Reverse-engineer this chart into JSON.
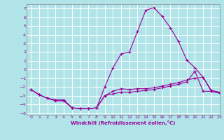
{
  "xlabel": "Windchill (Refroidissement éolien,°C)",
  "x_hours": [
    0,
    1,
    2,
    3,
    4,
    5,
    6,
    7,
    8,
    9,
    10,
    11,
    12,
    13,
    14,
    15,
    16,
    17,
    18,
    19,
    20,
    21,
    22,
    23
  ],
  "line1": [
    -2.3,
    -2.9,
    -3.3,
    -3.6,
    -3.6,
    -4.4,
    -4.5,
    -4.5,
    -4.4,
    -2.0,
    0.2,
    1.8,
    2.0,
    4.4,
    6.8,
    7.1,
    6.1,
    4.8,
    3.2,
    1.1,
    0.2,
    -0.9,
    -2.4,
    -2.6
  ],
  "line2": [
    -2.3,
    -2.9,
    -3.3,
    -3.5,
    -3.5,
    -4.4,
    -4.5,
    -4.5,
    -4.4,
    -3.0,
    -2.5,
    -2.2,
    -2.3,
    -2.2,
    -2.2,
    -2.1,
    -1.9,
    -1.7,
    -1.5,
    -1.2,
    -1.0,
    -0.9,
    -2.5,
    -2.7
  ],
  "line3": [
    -2.3,
    -2.9,
    -3.3,
    -3.5,
    -3.5,
    -4.4,
    -4.5,
    -4.5,
    -4.4,
    -3.0,
    -2.8,
    -2.6,
    -2.6,
    -2.5,
    -2.4,
    -2.3,
    -2.1,
    -1.9,
    -1.7,
    -1.4,
    -0.2,
    -2.5,
    -2.5,
    -2.7
  ],
  "line_color": "#990099",
  "bg_color": "#b0e4e8",
  "grid_color": "#c8e8e8",
  "xlim": [
    -0.5,
    23
  ],
  "ylim": [
    -5.2,
    7.5
  ],
  "yticks": [
    -5,
    -4,
    -3,
    -2,
    -1,
    0,
    1,
    2,
    3,
    4,
    5,
    6,
    7
  ],
  "xticks": [
    0,
    1,
    2,
    3,
    4,
    5,
    6,
    7,
    8,
    9,
    10,
    11,
    12,
    13,
    14,
    15,
    16,
    17,
    18,
    19,
    20,
    21,
    22,
    23
  ]
}
